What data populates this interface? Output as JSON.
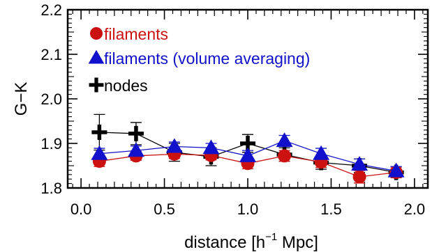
{
  "chart_data": {
    "type": "line",
    "title": "",
    "xlabel": "distance [h",
    "xlabel_sup": "−1",
    "xlabel_tail": " Mpc]",
    "ylabel": "G−K",
    "xlim": [
      -0.08,
      2.08
    ],
    "ylim": [
      1.8,
      2.2
    ],
    "x_ticks": [
      0.0,
      0.5,
      1.0,
      1.5,
      2.0
    ],
    "x_tick_labels": [
      "0.0",
      "0.5",
      "1.0",
      "1.5",
      "2.0"
    ],
    "y_ticks": [
      1.8,
      1.9,
      2.0,
      2.1,
      2.2
    ],
    "y_tick_labels": [
      "1.8",
      "1.9",
      "2.0",
      "2.1",
      "2.2"
    ],
    "grid": false,
    "legend_position": "top-left",
    "series": [
      {
        "name": "filaments",
        "marker": "circle",
        "color": "#cc1111",
        "x": [
          0.11,
          0.33,
          0.56,
          0.78,
          1.0,
          1.22,
          1.44,
          1.67,
          1.89
        ],
        "y": [
          1.86,
          1.872,
          1.876,
          1.873,
          1.855,
          1.872,
          1.858,
          1.825,
          1.835
        ],
        "err": [
          0.012,
          0.01,
          0.01,
          0.01,
          0.012,
          0.012,
          0.012,
          0.014,
          0.012
        ]
      },
      {
        "name": "filaments (volume averaging)",
        "marker": "triangle",
        "color": "#1111cc",
        "x": [
          0.11,
          0.33,
          0.56,
          0.78,
          1.0,
          1.22,
          1.44,
          1.67,
          1.89
        ],
        "y": [
          1.877,
          1.884,
          1.893,
          1.89,
          1.872,
          1.906,
          1.877,
          1.853,
          1.838
        ],
        "err": [
          0.012,
          0.01,
          0.01,
          0.01,
          0.012,
          0.012,
          0.012,
          0.012,
          0.01
        ]
      },
      {
        "name": "nodes",
        "marker": "plus",
        "color": "#000000",
        "x": [
          0.11,
          0.33,
          0.56,
          0.78,
          1.0,
          1.22,
          1.44,
          1.67,
          1.89
        ],
        "y": [
          1.925,
          1.922,
          1.88,
          1.87,
          1.9,
          1.875,
          1.857,
          1.85,
          1.835
        ],
        "err": [
          0.04,
          0.025,
          0.02,
          0.02,
          0.02,
          0.015,
          0.015,
          0.015,
          0.012
        ]
      }
    ]
  }
}
